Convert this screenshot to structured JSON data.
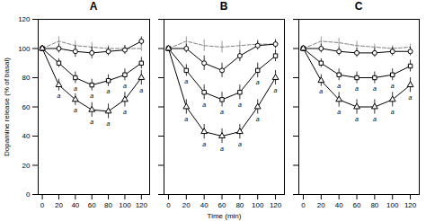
{
  "chart_data": [
    {
      "type": "line",
      "title": "A",
      "ylabel": "Dopamine release (% of basal)",
      "x": [
        0,
        20,
        40,
        60,
        80,
        100,
        120
      ],
      "xlim": [
        -5,
        130
      ],
      "xticks": [
        0,
        20,
        40,
        60,
        80,
        100,
        120
      ],
      "ylim": [
        0,
        120
      ],
      "yticks": [
        0,
        20,
        40,
        60,
        80,
        100,
        120
      ],
      "grid": false,
      "series": [
        {
          "color": "gray",
          "line_style": "dashed",
          "marker": "none",
          "values": [
            100,
            105,
            102,
            101,
            100,
            100,
            100
          ],
          "errors": [
            2,
            3,
            3,
            3,
            2,
            2,
            2
          ]
        },
        {
          "color": "black",
          "line_style": "solid",
          "marker": "circle",
          "values": [
            100,
            100,
            98,
            97,
            98,
            99,
            105
          ],
          "errors": [
            2,
            3,
            4,
            4,
            3,
            3,
            3
          ]
        },
        {
          "color": "black",
          "line_style": "solid",
          "marker": "square",
          "values": [
            100,
            90,
            80,
            75,
            78,
            82,
            90
          ],
          "errors": [
            2,
            3,
            4,
            4,
            4,
            4,
            4
          ],
          "annotations": [
            {
              "x": 40,
              "text": "a"
            },
            {
              "x": 60,
              "text": "a"
            },
            {
              "x": 80,
              "text": "a"
            },
            {
              "x": 100,
              "text": "a"
            }
          ]
        },
        {
          "color": "black",
          "line_style": "solid",
          "marker": "triangle",
          "values": [
            100,
            75,
            65,
            58,
            57,
            65,
            80
          ],
          "errors": [
            2,
            4,
            4,
            5,
            5,
            5,
            5
          ],
          "annotations": [
            {
              "x": 20,
              "text": "a"
            },
            {
              "x": 40,
              "text": "a"
            },
            {
              "x": 60,
              "text": "a"
            },
            {
              "x": 80,
              "text": "a"
            },
            {
              "x": 100,
              "text": "a"
            },
            {
              "x": 120,
              "text": "a"
            }
          ]
        }
      ]
    },
    {
      "type": "line",
      "title": "B",
      "xlabel": "Time (min)",
      "tick_labels": "x",
      "x": [
        0,
        20,
        40,
        60,
        80,
        100,
        120
      ],
      "xlim": [
        -5,
        130
      ],
      "xticks": [
        0,
        20,
        40,
        60,
        80,
        100,
        120
      ],
      "ylim": [
        0,
        120
      ],
      "yticks": [
        0,
        20,
        40,
        60,
        80,
        100,
        120
      ],
      "grid": false,
      "series": [
        {
          "color": "gray",
          "line_style": "dashed",
          "marker": "none",
          "values": [
            100,
            105,
            102,
            101,
            102,
            103,
            103
          ],
          "errors": [
            2,
            3,
            4,
            4,
            3,
            3,
            3
          ]
        },
        {
          "color": "black",
          "line_style": "solid",
          "marker": "circle",
          "values": [
            100,
            100,
            90,
            85,
            95,
            102,
            103
          ],
          "errors": [
            2,
            3,
            5,
            5,
            4,
            3,
            3
          ]
        },
        {
          "color": "black",
          "line_style": "solid",
          "marker": "square",
          "values": [
            100,
            85,
            70,
            65,
            70,
            85,
            95
          ],
          "errors": [
            2,
            4,
            5,
            5,
            5,
            5,
            4
          ],
          "annotations": [
            {
              "x": 20,
              "text": "a"
            },
            {
              "x": 40,
              "text": "a"
            },
            {
              "x": 60,
              "text": "a"
            },
            {
              "x": 80,
              "text": "a"
            },
            {
              "x": 100,
              "text": "a"
            }
          ]
        },
        {
          "color": "black",
          "line_style": "solid",
          "marker": "triangle",
          "values": [
            100,
            60,
            43,
            40,
            43,
            60,
            80
          ],
          "errors": [
            2,
            5,
            5,
            5,
            5,
            5,
            5
          ],
          "annotations": [
            {
              "x": 20,
              "text": "a"
            },
            {
              "x": 40,
              "text": "a"
            },
            {
              "x": 60,
              "text": "a"
            },
            {
              "x": 80,
              "text": "a"
            },
            {
              "x": 100,
              "text": "a"
            },
            {
              "x": 120,
              "text": "a"
            }
          ]
        }
      ]
    },
    {
      "type": "line",
      "title": "C",
      "tick_labels": "x",
      "x": [
        0,
        20,
        40,
        60,
        80,
        100,
        120
      ],
      "xlim": [
        -5,
        130
      ],
      "xticks": [
        0,
        20,
        40,
        60,
        80,
        100,
        120
      ],
      "ylim": [
        0,
        120
      ],
      "yticks": [
        0,
        20,
        40,
        60,
        80,
        100,
        120
      ],
      "grid": false,
      "series": [
        {
          "color": "gray",
          "line_style": "dashed",
          "marker": "none",
          "values": [
            100,
            105,
            104,
            102,
            101,
            100,
            101
          ],
          "errors": [
            2,
            3,
            3,
            3,
            2,
            2,
            2
          ]
        },
        {
          "color": "black",
          "line_style": "solid",
          "marker": "circle",
          "values": [
            100,
            100,
            98,
            97,
            97,
            98,
            98
          ],
          "errors": [
            2,
            3,
            3,
            3,
            3,
            3,
            3
          ]
        },
        {
          "color": "black",
          "line_style": "solid",
          "marker": "square",
          "values": [
            100,
            90,
            82,
            80,
            80,
            82,
            88
          ],
          "errors": [
            2,
            3,
            4,
            4,
            4,
            4,
            4
          ],
          "annotations": [
            {
              "x": 40,
              "text": "a"
            },
            {
              "x": 60,
              "text": "a"
            },
            {
              "x": 80,
              "text": "a"
            },
            {
              "x": 100,
              "text": "a"
            }
          ]
        },
        {
          "color": "black",
          "line_style": "solid",
          "marker": "triangle",
          "values": [
            100,
            78,
            65,
            60,
            60,
            65,
            75
          ],
          "errors": [
            2,
            4,
            5,
            5,
            5,
            5,
            5
          ],
          "annotations": [
            {
              "x": 20,
              "text": "a"
            },
            {
              "x": 40,
              "text": "a"
            },
            {
              "x": 60,
              "text": "a"
            },
            {
              "x": 80,
              "text": "a"
            },
            {
              "x": 100,
              "text": "a"
            },
            {
              "x": 120,
              "text": "a"
            }
          ]
        }
      ]
    }
  ]
}
